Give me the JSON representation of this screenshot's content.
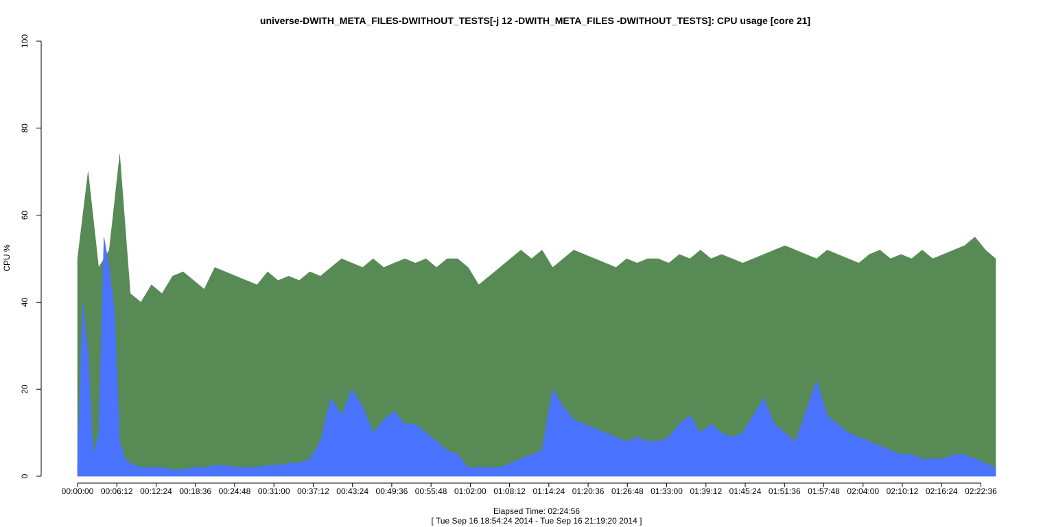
{
  "chart_data": {
    "type": "area",
    "title": "universe-DWITH_META_FILES-DWITHOUT_TESTS[-j 12 -DWITH_META_FILES -DWITHOUT_TESTS]: CPU usage [core 21]",
    "ylabel": "CPU %",
    "xlabel": "Elapsed Time: 02:24:56",
    "xlabel_range": "[ Tue Sep 16 18:54:24 2014 - Tue Sep 16 21:19:20 2014 ]",
    "ylim": [
      0,
      100
    ],
    "yticks": [
      0,
      20,
      40,
      60,
      80,
      100
    ],
    "xlim_seconds": [
      0,
      8696
    ],
    "xticks": [
      {
        "t": 0,
        "label": "00:00:00"
      },
      {
        "t": 372,
        "label": "00:06:12"
      },
      {
        "t": 744,
        "label": "00:12:24"
      },
      {
        "t": 1116,
        "label": "00:18:36"
      },
      {
        "t": 1488,
        "label": "00:24:48"
      },
      {
        "t": 1860,
        "label": "00:31:00"
      },
      {
        "t": 2232,
        "label": "00:37:12"
      },
      {
        "t": 2604,
        "label": "00:43:24"
      },
      {
        "t": 2976,
        "label": "00:49:36"
      },
      {
        "t": 3348,
        "label": "00:55:48"
      },
      {
        "t": 3720,
        "label": "01:02:00"
      },
      {
        "t": 4092,
        "label": "01:08:12"
      },
      {
        "t": 4464,
        "label": "01:14:24"
      },
      {
        "t": 4836,
        "label": "01:20:36"
      },
      {
        "t": 5208,
        "label": "01:26:48"
      },
      {
        "t": 5580,
        "label": "01:33:00"
      },
      {
        "t": 5952,
        "label": "01:39:12"
      },
      {
        "t": 6324,
        "label": "01:45:24"
      },
      {
        "t": 6696,
        "label": "01:51:36"
      },
      {
        "t": 7068,
        "label": "01:57:48"
      },
      {
        "t": 7440,
        "label": "02:04:00"
      },
      {
        "t": 7812,
        "label": "02:10:12"
      },
      {
        "t": 8184,
        "label": "02:16:24"
      },
      {
        "t": 8556,
        "label": "02:22:36"
      }
    ],
    "series": [
      {
        "color": "#578a55",
        "x": [
          0,
          100,
          200,
          300,
          400,
          500,
          600,
          700,
          800,
          900,
          1000,
          1100,
          1200,
          1300,
          1400,
          1500,
          1600,
          1700,
          1800,
          1900,
          2000,
          2100,
          2200,
          2300,
          2400,
          2500,
          2600,
          2700,
          2800,
          2900,
          3000,
          3100,
          3200,
          3300,
          3400,
          3500,
          3600,
          3700,
          3800,
          3900,
          4000,
          4100,
          4200,
          4300,
          4400,
          4500,
          4600,
          4700,
          4800,
          4900,
          5000,
          5100,
          5200,
          5300,
          5400,
          5500,
          5600,
          5700,
          5800,
          5900,
          6000,
          6100,
          6200,
          6300,
          6400,
          6500,
          6600,
          6700,
          6800,
          6900,
          7000,
          7100,
          7200,
          7300,
          7400,
          7500,
          7600,
          7700,
          7800,
          7900,
          8000,
          8100,
          8200,
          8300,
          8400,
          8500,
          8600,
          8696
        ],
        "values": [
          50,
          70,
          48,
          52,
          74,
          42,
          40,
          44,
          42,
          46,
          47,
          45,
          43,
          48,
          47,
          46,
          45,
          44,
          47,
          45,
          46,
          45,
          47,
          46,
          48,
          50,
          49,
          48,
          50,
          48,
          49,
          50,
          49,
          50,
          48,
          50,
          50,
          48,
          44,
          46,
          48,
          50,
          52,
          50,
          52,
          48,
          50,
          52,
          51,
          50,
          49,
          48,
          50,
          49,
          50,
          50,
          49,
          51,
          50,
          52,
          50,
          51,
          50,
          49,
          50,
          51,
          52,
          53,
          52,
          51,
          50,
          52,
          51,
          50,
          49,
          51,
          52,
          50,
          51,
          50,
          52,
          50,
          51,
          52,
          53,
          55,
          52,
          50
        ]
      },
      {
        "color": "#4a73ff",
        "x": [
          0,
          50,
          100,
          150,
          200,
          250,
          300,
          350,
          400,
          450,
          500,
          600,
          700,
          800,
          900,
          1000,
          1100,
          1200,
          1300,
          1400,
          1500,
          1600,
          1700,
          1800,
          1900,
          2000,
          2100,
          2200,
          2300,
          2400,
          2500,
          2600,
          2700,
          2800,
          2900,
          3000,
          3100,
          3200,
          3300,
          3400,
          3500,
          3600,
          3700,
          3800,
          3900,
          4000,
          4100,
          4200,
          4300,
          4400,
          4500,
          4600,
          4700,
          4800,
          4900,
          5000,
          5100,
          5200,
          5300,
          5400,
          5500,
          5600,
          5700,
          5800,
          5900,
          6000,
          6100,
          6200,
          6300,
          6400,
          6500,
          6600,
          6700,
          6800,
          6900,
          7000,
          7100,
          7200,
          7300,
          7400,
          7500,
          7600,
          7700,
          7800,
          7900,
          8000,
          8100,
          8200,
          8300,
          8400,
          8500,
          8600,
          8696
        ],
        "values": [
          3,
          40,
          28,
          5,
          10,
          55,
          48,
          38,
          8,
          4,
          3,
          2,
          2,
          2,
          1.5,
          1.5,
          2,
          2,
          2.5,
          2.5,
          2,
          2,
          2,
          2.5,
          2.5,
          3,
          3,
          4,
          8,
          18,
          14,
          20,
          16,
          10,
          13,
          15,
          12,
          12,
          10,
          8,
          6,
          5,
          2,
          2,
          2,
          2,
          3,
          4,
          5,
          6,
          20,
          16,
          13,
          12,
          11,
          10,
          9,
          8,
          9,
          8,
          8,
          9,
          12,
          14,
          10,
          12,
          10,
          9,
          10,
          14,
          18,
          12,
          10,
          8,
          15,
          22,
          14,
          12,
          10,
          9,
          8,
          7,
          6,
          5,
          5,
          4,
          4,
          4,
          5,
          5,
          4,
          3,
          2
        ]
      }
    ]
  }
}
